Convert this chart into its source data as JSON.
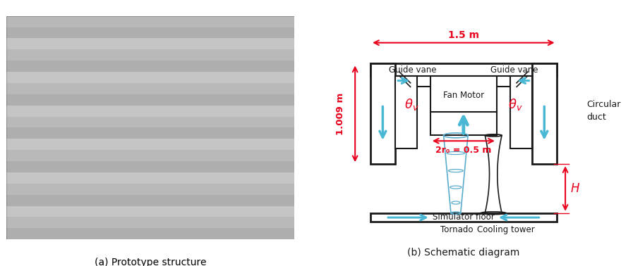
{
  "fig_width": 8.97,
  "fig_height": 3.78,
  "photo_caption": "(a) Prototype structure",
  "diagram_caption": "(b) Schematic diagram",
  "red_color": "#e8001c",
  "blue_color": "#4ab8d4",
  "black_color": "#1a1a1a",
  "dim_15m": "1.5 m",
  "dim_1009m": "1.009 m",
  "dim_2r0": "2r₀ = 0.5 m",
  "label_guide_vane_left": "Guide vane",
  "label_guide_vane_right": "Guide vane",
  "label_fan_motor": "Fan Motor",
  "label_circular_duct": "Circular\nduct",
  "label_tornado": "Tornado",
  "label_cooling_tower": "Cooling tower",
  "label_simulator_floor": "Simulator floor",
  "label_H": "H"
}
